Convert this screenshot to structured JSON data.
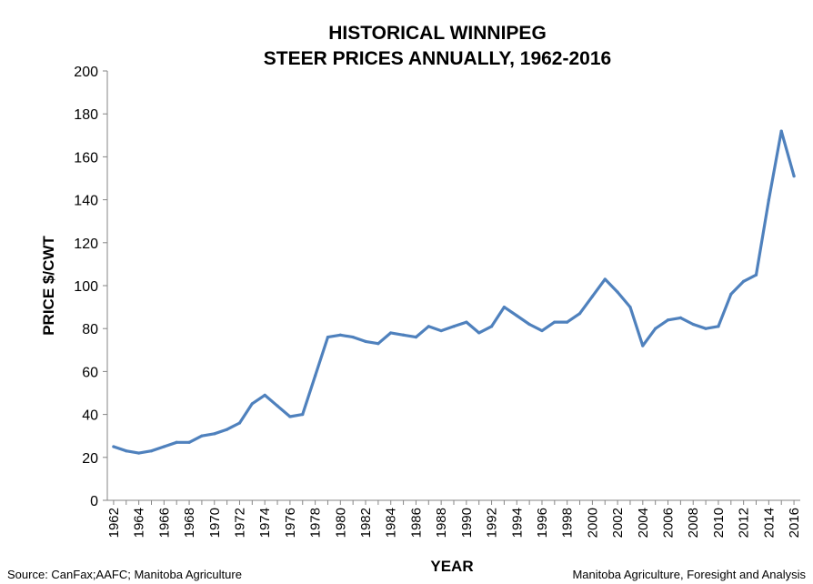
{
  "chart_data": {
    "type": "line",
    "title_lines": [
      "HISTORICAL WINNIPEG",
      "STEER PRICES ANNUALLY, 1962-2016"
    ],
    "xlabel": "YEAR",
    "ylabel": "PRICE $/CWT",
    "ylim": [
      0,
      200
    ],
    "y_ticks": [
      "0",
      "20",
      "40",
      "60",
      "80",
      "100",
      "120",
      "140",
      "160",
      "180",
      "200"
    ],
    "x_tick_labels": [
      "1962",
      "1964",
      "1966",
      "1968",
      "1970",
      "1972",
      "1974",
      "1976",
      "1978",
      "1980",
      "1982",
      "1984",
      "1986",
      "1988",
      "1990",
      "1992",
      "1994",
      "1996",
      "1998",
      "2000",
      "2002",
      "2004",
      "2006",
      "2008",
      "2010",
      "2012",
      "2014",
      "2016"
    ],
    "grid": false,
    "legend": "none",
    "series": [
      {
        "color": "#4f81bd",
        "x": [
          1962,
          1963,
          1964,
          1965,
          1966,
          1967,
          1968,
          1969,
          1970,
          1971,
          1972,
          1973,
          1974,
          1975,
          1976,
          1977,
          1978,
          1979,
          1980,
          1981,
          1982,
          1983,
          1984,
          1985,
          1986,
          1987,
          1988,
          1989,
          1990,
          1991,
          1992,
          1993,
          1994,
          1995,
          1996,
          1997,
          1998,
          1999,
          2000,
          2001,
          2002,
          2003,
          2004,
          2005,
          2006,
          2007,
          2008,
          2009,
          2010,
          2011,
          2012,
          2013,
          2014,
          2015,
          2016
        ],
        "values": [
          25,
          23,
          22,
          23,
          25,
          27,
          27,
          30,
          31,
          33,
          36,
          45,
          49,
          44,
          39,
          40,
          58,
          76,
          77,
          76,
          74,
          73,
          78,
          77,
          76,
          81,
          79,
          81,
          83,
          78,
          81,
          90,
          86,
          82,
          79,
          83,
          83,
          87,
          95,
          103,
          97,
          90,
          72,
          80,
          84,
          85,
          82,
          80,
          81,
          96,
          102,
          105,
          140,
          172,
          151
        ]
      }
    ]
  },
  "footer": {
    "source": "Source: CanFax;AAFC; Manitoba Agriculture",
    "credit": "Manitoba Agriculture, Foresight and Analysis"
  }
}
